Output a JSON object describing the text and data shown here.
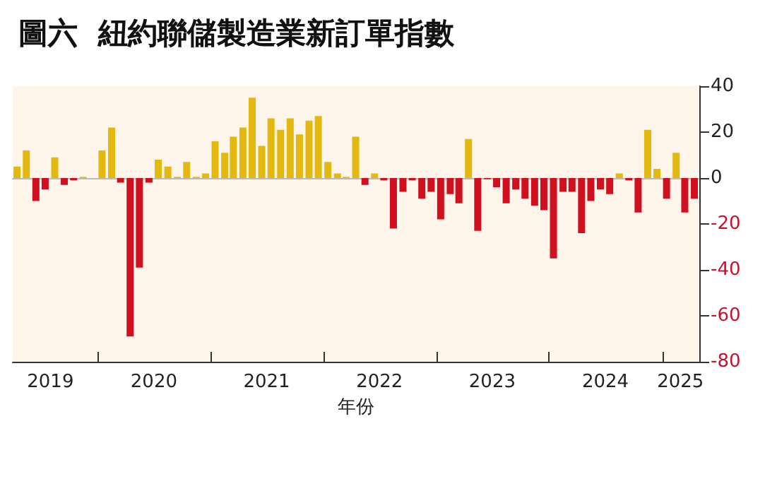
{
  "chart_data": {
    "type": "bar",
    "title": "圖六  紐約聯儲製造業新訂單指數",
    "xlabel": "年份",
    "x": [
      "2019-04",
      "2019-05",
      "2019-06",
      "2019-07",
      "2019-08",
      "2019-09",
      "2019-10",
      "2019-11",
      "2019-12",
      "2020-01",
      "2020-02",
      "2020-03",
      "2020-04",
      "2020-05",
      "2020-06",
      "2020-07",
      "2020-08",
      "2020-09",
      "2020-10",
      "2020-11",
      "2020-12",
      "2021-01",
      "2021-02",
      "2021-03",
      "2021-04",
      "2021-05",
      "2021-06",
      "2021-07",
      "2021-08",
      "2021-09",
      "2021-10",
      "2021-11",
      "2021-12",
      "2022-01",
      "2022-02",
      "2022-03",
      "2022-04",
      "2022-05",
      "2022-06",
      "2022-07",
      "2022-08",
      "2022-09",
      "2022-10",
      "2022-11",
      "2022-12",
      "2023-01",
      "2023-02",
      "2023-03",
      "2023-04",
      "2023-05",
      "2023-06",
      "2023-07",
      "2023-08",
      "2023-09",
      "2023-10",
      "2023-11",
      "2023-12",
      "2024-01",
      "2024-02",
      "2024-03",
      "2024-04",
      "2024-05",
      "2024-06",
      "2024-07",
      "2024-08",
      "2024-09",
      "2024-10",
      "2024-11",
      "2024-12",
      "2025-01",
      "2025-02",
      "2025-03",
      "2025-04"
    ],
    "values": [
      5,
      12,
      -10,
      -5,
      9,
      -3,
      -1,
      0.5,
      0,
      12,
      22,
      -2,
      -69,
      -39,
      -2,
      8,
      5,
      0.5,
      7,
      0.5,
      2,
      16,
      11,
      18,
      22,
      35,
      14,
      26,
      21,
      26,
      19,
      25,
      27,
      7,
      2,
      0.5,
      18,
      -3,
      2,
      -1,
      -22,
      -6,
      -1,
      -9,
      -6,
      -18,
      -7,
      -11,
      17,
      -23,
      -0.5,
      -4,
      -11,
      -5,
      -9,
      -12,
      -14,
      -35,
      -6,
      -6,
      -24,
      -10,
      -5,
      -7,
      2,
      -1,
      -15,
      21,
      4,
      -9,
      11,
      -15,
      -9
    ],
    "colors": [
      "#e3b80f",
      "#e3b80f",
      "#d0101f",
      "#d0101f",
      "#e3b80f",
      "#d0101f",
      "#d0101f",
      "#e3b80f",
      "#e3b80f",
      "#e3b80f",
      "#e3b80f",
      "#d0101f",
      "#d0101f",
      "#d0101f",
      "#d0101f",
      "#e3b80f",
      "#e3b80f",
      "#e3b80f",
      "#e3b80f",
      "#e3b80f",
      "#e3b80f",
      "#e3b80f",
      "#e3b80f",
      "#e3b80f",
      "#e3b80f",
      "#e3b80f",
      "#e3b80f",
      "#e3b80f",
      "#e3b80f",
      "#e3b80f",
      "#e3b80f",
      "#e3b80f",
      "#e3b80f",
      "#e3b80f",
      "#e3b80f",
      "#e3b80f",
      "#e3b80f",
      "#d0101f",
      "#e3b80f",
      "#d0101f",
      "#d0101f",
      "#d0101f",
      "#d0101f",
      "#d0101f",
      "#d0101f",
      "#d0101f",
      "#d0101f",
      "#d0101f",
      "#e3b80f",
      "#d0101f",
      "#d0101f",
      "#d0101f",
      "#d0101f",
      "#d0101f",
      "#d0101f",
      "#d0101f",
      "#d0101f",
      "#d0101f",
      "#d0101f",
      "#d0101f",
      "#d0101f",
      "#d0101f",
      "#d0101f",
      "#d0101f",
      "#e3b80f",
      "#d0101f",
      "#d0101f",
      "#e3b80f",
      "#e3b80f",
      "#d0101f",
      "#e3b80f",
      "#d0101f",
      "#d0101f"
    ],
    "xlim": [
      "2019-04",
      "2025-05"
    ],
    "xticks": [
      {
        "value": "2019-08",
        "label": "2019"
      },
      {
        "value": "2020-01",
        "label": null
      },
      {
        "value": "2020-07",
        "label": "2020"
      },
      {
        "value": "2021-01",
        "label": null
      },
      {
        "value": "2021-07",
        "label": "2021"
      },
      {
        "value": "2022-01",
        "label": null
      },
      {
        "value": "2022-07",
        "label": "2022"
      },
      {
        "value": "2023-01",
        "label": null
      },
      {
        "value": "2023-07",
        "label": "2023"
      },
      {
        "value": "2024-01",
        "label": null
      },
      {
        "value": "2024-07",
        "label": "2024"
      },
      {
        "value": "2025-01",
        "label": null
      },
      {
        "value": "2025-03",
        "label": "2025"
      }
    ],
    "ylim": [
      -80,
      40
    ],
    "yticks": [
      40,
      20,
      0,
      -20,
      -40,
      -60,
      -80
    ]
  }
}
